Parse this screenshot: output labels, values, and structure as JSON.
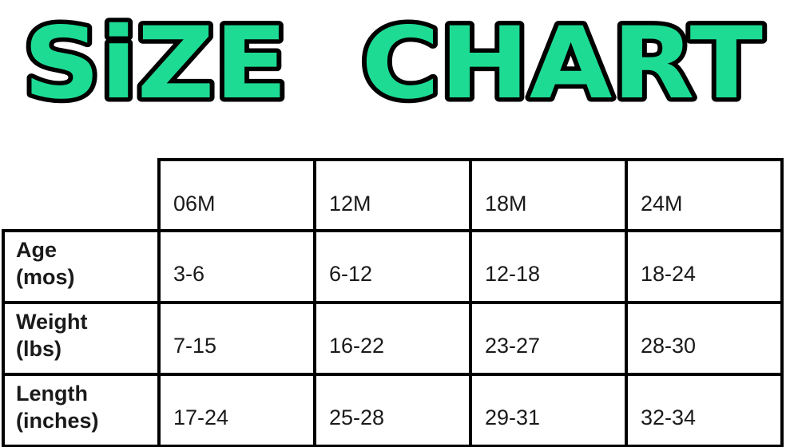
{
  "title": "SiZE CHART",
  "colors": {
    "title_fill": "#1edb94",
    "title_outline": "#000000",
    "table_border": "#000000",
    "text": "#1a1a1a",
    "background": "#ffffff"
  },
  "chart_data": {
    "type": "table",
    "title": "SIZE CHART",
    "columns": [
      "06M",
      "12M",
      "18M",
      "24M"
    ],
    "rows": [
      {
        "label": [
          "Age",
          "(mos)"
        ],
        "values": [
          "3-6",
          "6-12",
          "12-18",
          "18-24"
        ]
      },
      {
        "label": [
          "Weight",
          "(lbs)"
        ],
        "values": [
          "7-15",
          "16-22",
          "23-27",
          "28-30"
        ]
      },
      {
        "label": [
          "Length",
          "(inches)"
        ],
        "values": [
          "17-24",
          "25-28",
          "29-31",
          "32-34"
        ]
      }
    ]
  }
}
